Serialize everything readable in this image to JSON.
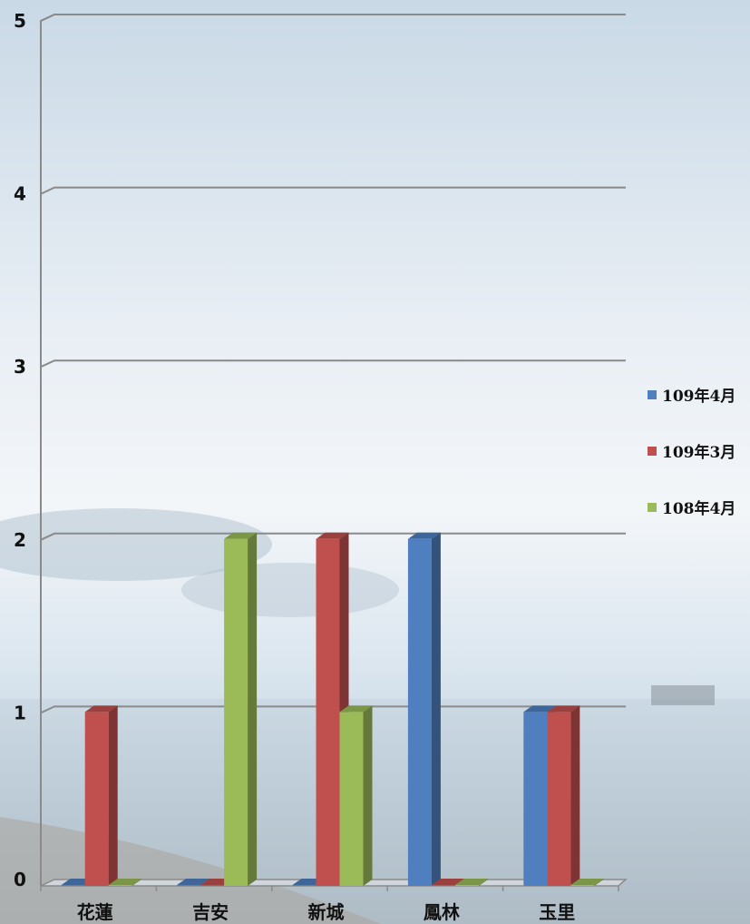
{
  "chart_data": {
    "type": "bar",
    "title": "",
    "xlabel": "",
    "ylabel": "",
    "ylim": [
      0,
      5
    ],
    "yticks": [
      0,
      1,
      2,
      3,
      4,
      5
    ],
    "grid": true,
    "legend_position": "right",
    "categories": [
      "花蓮",
      "吉安",
      "新城",
      "鳳林",
      "玉里"
    ],
    "series": [
      {
        "name": "109年4月",
        "color": "#4f7fbf",
        "values": [
          0,
          0,
          0,
          2,
          1
        ]
      },
      {
        "name": "109年3月",
        "color": "#c0504d",
        "values": [
          1,
          0,
          2,
          0,
          1
        ]
      },
      {
        "name": "108年4月",
        "color": "#9bbb59",
        "values": [
          0,
          2,
          1,
          0,
          0
        ]
      }
    ]
  }
}
